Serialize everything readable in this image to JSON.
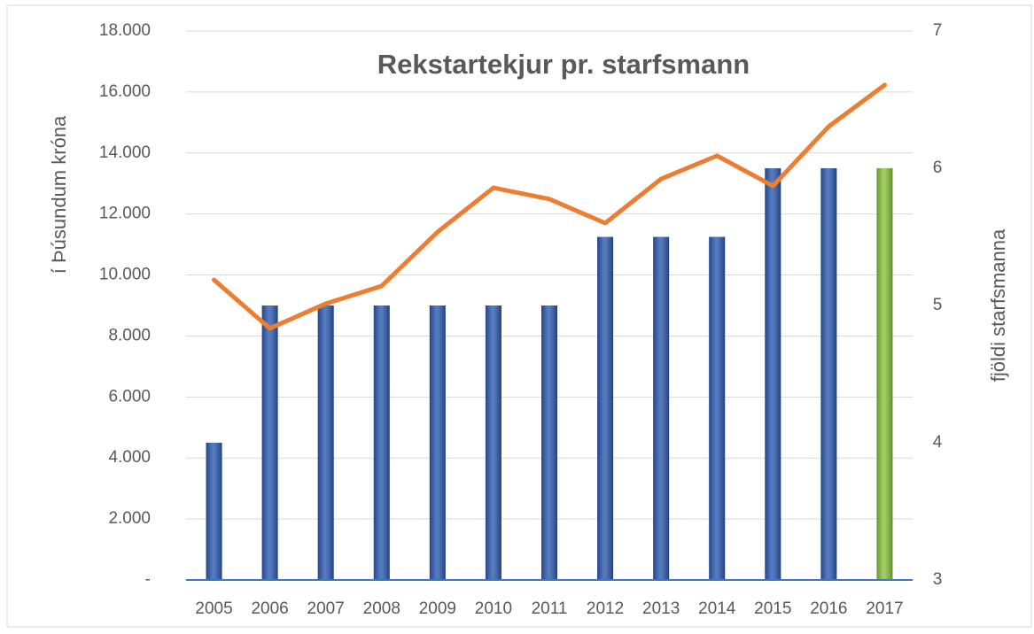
{
  "chart_data": {
    "type": "bar-line",
    "title": "Rekstartekjur pr. starfsmann",
    "y_label": "í Þúsundum króna",
    "y2_label": "fjöldi starfsmanna",
    "categories": [
      "2005",
      "2006",
      "2007",
      "2008",
      "2009",
      "2010",
      "2011",
      "2012",
      "2013",
      "2014",
      "2015",
      "2016",
      "2017"
    ],
    "series": [
      {
        "type": "bar",
        "axis": "y2",
        "colors": [
          "#2e5cb3",
          "#2e5cb3",
          "#2e5cb3",
          "#2e5cb3",
          "#2e5cb3",
          "#2e5cb3",
          "#2e5cb3",
          "#2e5cb3",
          "#2e5cb3",
          "#2e5cb3",
          "#2e5cb3",
          "#2e5cb3",
          "#8cc63f"
        ],
        "values": [
          4,
          5,
          5,
          5,
          5,
          5,
          5,
          5.5,
          5.5,
          5.5,
          6,
          6,
          6
        ]
      },
      {
        "type": "line",
        "axis": "y",
        "color": "#ed7d31",
        "values": [
          9840,
          8250,
          9060,
          9640,
          11410,
          12860,
          12490,
          11700,
          13150,
          13910,
          12920,
          14870,
          16230
        ]
      }
    ],
    "ylim": [
      0,
      18000
    ],
    "yticks": [
      {
        "value": 0,
        "label": "-"
      },
      {
        "value": 2000,
        "label": "2.000"
      },
      {
        "value": 4000,
        "label": "4.000"
      },
      {
        "value": 6000,
        "label": "6.000"
      },
      {
        "value": 8000,
        "label": "8.000"
      },
      {
        "value": 10000,
        "label": "10.000"
      },
      {
        "value": 12000,
        "label": "12.000"
      },
      {
        "value": 14000,
        "label": "14.000"
      },
      {
        "value": 16000,
        "label": "16.000"
      },
      {
        "value": 18000,
        "label": "18.000"
      }
    ],
    "y2lim": [
      3,
      7
    ],
    "y2ticks": [
      3,
      4,
      5,
      6,
      7
    ],
    "grid": true
  }
}
